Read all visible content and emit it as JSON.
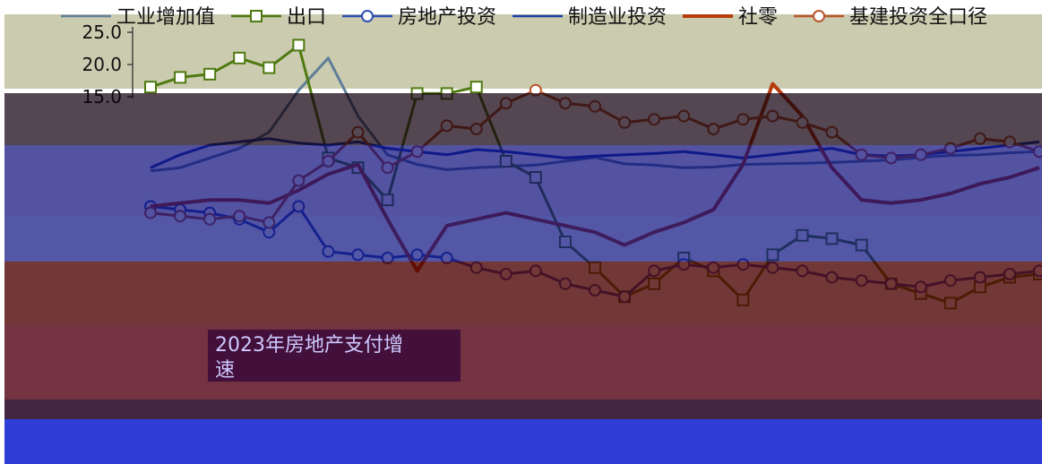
{
  "chart_data": {
    "type": "line",
    "title": "",
    "xlabel": "",
    "ylabel": "",
    "ylim": [
      -25,
      25
    ],
    "yticks": [
      25,
      20,
      15
    ],
    "legend_position": "top",
    "annotation": "2023年房地产支付增\n速",
    "x": [
      1,
      2,
      3,
      4,
      5,
      6,
      7,
      8,
      9,
      10,
      11,
      12,
      13,
      14,
      15,
      16,
      17,
      18,
      19,
      20,
      21,
      22,
      23,
      24,
      25,
      26,
      27,
      28,
      29,
      30,
      31
    ],
    "series": [
      {
        "name": "工业增加值",
        "color": "#5f7f98",
        "style": "line",
        "values": [
          3.5,
          4.0,
          5.5,
          7.0,
          9.5,
          16.0,
          21.0,
          12.0,
          6.0,
          4.5,
          3.7,
          4.0,
          4.2,
          4.4,
          5.0,
          5.6,
          4.6,
          4.4,
          4.0,
          4.1,
          4.5,
          4.6,
          4.7,
          4.8,
          5.0,
          5.2,
          5.6,
          5.9,
          6.0,
          6.3,
          6.5
        ]
      },
      {
        "name": "出口",
        "color": "#4f7a10",
        "style": "square",
        "values": [
          16.5,
          18.0,
          18.5,
          21.0,
          19.5,
          23.0,
          5.5,
          4.0,
          -1.0,
          15.5,
          15.5,
          16.5,
          5.0,
          2.5,
          -7.5,
          -11.5,
          -16.0,
          -14.0,
          -10.0,
          -12.0,
          -16.5,
          -9.5,
          -6.5,
          -7.0,
          -8.0,
          -14.0,
          -15.5,
          -17.0,
          -14.5,
          -13.0,
          -12.5
        ]
      },
      {
        "name": "房地产投资",
        "color": "#2f4fb0",
        "style": "circle",
        "values": [
          -2.0,
          -2.5,
          -3.0,
          -4.0,
          -6.0,
          -2.0,
          -9.0,
          -9.5,
          -10.0,
          -9.5,
          -10.0,
          -11.5,
          -12.5,
          -12.0,
          -14.0,
          -15.0,
          -16.0,
          -12.0,
          -11.0,
          -11.5,
          -11.0,
          -11.5,
          -12.0,
          -13.0,
          -13.5,
          -14.0,
          -14.5,
          -13.5,
          -13.0,
          -12.5,
          -12.0
        ]
      },
      {
        "name": "制造业投资",
        "color": "#1d3ea8",
        "style": "line",
        "values": [
          4.0,
          6.0,
          7.5,
          8.0,
          8.5,
          7.8,
          7.5,
          8.0,
          7.0,
          6.5,
          6.0,
          6.8,
          6.5,
          6.0,
          5.5,
          5.8,
          6.0,
          6.2,
          6.5,
          6.0,
          5.5,
          6.0,
          6.5,
          7.0,
          6.0,
          5.8,
          6.0,
          6.5,
          7.0,
          7.5,
          8.0
        ]
      },
      {
        "name": "社零",
        "color": "#b63c0c",
        "style": "line",
        "values": [
          -2.0,
          -1.5,
          -1.0,
          -1.0,
          -1.5,
          0.5,
          3.0,
          4.5,
          -4.0,
          -12.0,
          -5.0,
          -4.0,
          -3.0,
          -4.0,
          -5.0,
          -6.0,
          -8.0,
          -6.0,
          -4.5,
          -2.5,
          4.5,
          17.0,
          12.0,
          4.0,
          -1.0,
          -1.5,
          -1.0,
          0.0,
          1.5,
          2.5,
          4.0
        ]
      },
      {
        "name": "基建投资全口径",
        "color": "#b8562c",
        "style": "circle",
        "values": [
          -3.0,
          -3.5,
          -4.0,
          -3.5,
          -4.5,
          2.0,
          5.0,
          9.5,
          4.0,
          6.5,
          10.5,
          10.0,
          14.0,
          16.0,
          14.0,
          13.5,
          11.0,
          11.5,
          12.0,
          10.0,
          11.5,
          12.0,
          11.0,
          9.5,
          6.0,
          5.5,
          6.0,
          7.0,
          8.5,
          8.0,
          6.5
        ]
      }
    ]
  }
}
